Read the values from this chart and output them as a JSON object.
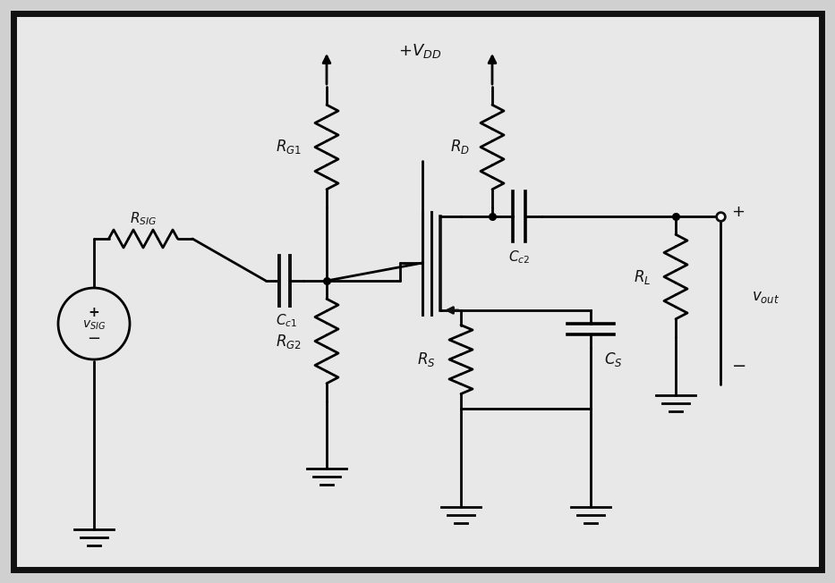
{
  "bg_color": "#d0d0d0",
  "border_color": "#111111",
  "line_color": "#111111",
  "fig_width": 9.33,
  "fig_height": 6.52,
  "dpi": 100,
  "xlim": [
    0,
    9.33
  ],
  "ylim": [
    0,
    6.52
  ]
}
